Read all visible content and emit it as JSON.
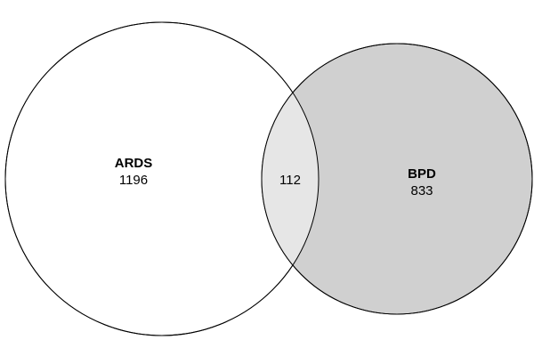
{
  "venn": {
    "sets": [
      {
        "label": "ARDS",
        "count": "1196",
        "fill": "#ffffff"
      },
      {
        "label": "BPD",
        "count": "833",
        "fill": "#d0d0d0"
      }
    ],
    "intersection": {
      "count": "112",
      "fill": "#e6e6e6"
    },
    "stroke": "#000000"
  }
}
